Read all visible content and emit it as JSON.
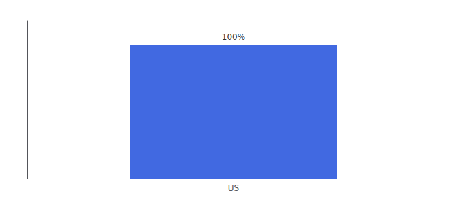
{
  "chart_data": {
    "type": "bar",
    "categories": [
      "US"
    ],
    "values": [
      100
    ],
    "value_labels": [
      "100%"
    ],
    "color": "#4169e1",
    "ylim": [
      0,
      118
    ],
    "data_labels": true,
    "tick_labels": "x",
    "grid": false
  }
}
